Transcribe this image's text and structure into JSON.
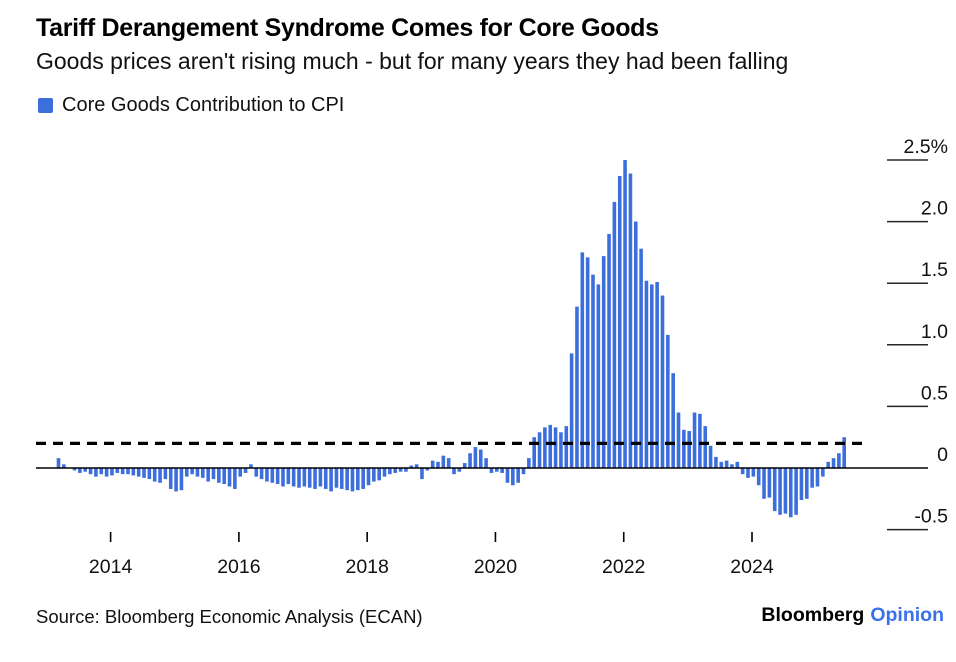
{
  "header": {
    "title": "Tariff Derangement Syndrome Comes for Core Goods",
    "subtitle": "Goods prices aren't rising much - but for many years they had been falling"
  },
  "legend": {
    "label": "Core Goods Contribution to CPI",
    "swatch_color": "#3D6FDC"
  },
  "footer": {
    "source": "Source: Bloomberg Economic Analysis (ECAN)",
    "brand_bloomberg": "Bloomberg",
    "brand_opinion": "Opinion",
    "brand_opinion_color": "#3A70E8"
  },
  "chart_data": {
    "type": "bar",
    "title": "Tariff Derangement Syndrome Comes for Core Goods",
    "subtitle": "Goods prices aren't rising much - but for many years they had been falling",
    "series_name": "Core Goods Contribution to CPI",
    "unit": "%",
    "frequency": "monthly",
    "start_month": "2013-04",
    "end_month": "2025-07",
    "values": [
      0.08,
      0.03,
      0.0,
      -0.02,
      -0.04,
      -0.03,
      -0.05,
      -0.07,
      -0.05,
      -0.07,
      -0.06,
      -0.04,
      -0.05,
      -0.05,
      -0.06,
      -0.07,
      -0.08,
      -0.09,
      -0.11,
      -0.12,
      -0.09,
      -0.17,
      -0.19,
      -0.18,
      -0.07,
      -0.05,
      -0.07,
      -0.08,
      -0.11,
      -0.09,
      -0.12,
      -0.13,
      -0.15,
      -0.17,
      -0.07,
      -0.04,
      0.03,
      -0.07,
      -0.09,
      -0.11,
      -0.12,
      -0.13,
      -0.15,
      -0.13,
      -0.15,
      -0.16,
      -0.15,
      -0.16,
      -0.17,
      -0.15,
      -0.17,
      -0.19,
      -0.16,
      -0.17,
      -0.18,
      -0.19,
      -0.18,
      -0.17,
      -0.14,
      -0.11,
      -0.1,
      -0.07,
      -0.05,
      -0.04,
      -0.03,
      -0.03,
      0.02,
      0.03,
      -0.09,
      -0.02,
      0.06,
      0.05,
      0.1,
      0.08,
      -0.05,
      -0.03,
      0.04,
      0.12,
      0.17,
      0.15,
      0.08,
      -0.04,
      -0.03,
      -0.04,
      -0.12,
      -0.14,
      -0.12,
      -0.05,
      0.08,
      0.25,
      0.29,
      0.33,
      0.35,
      0.33,
      0.29,
      0.34,
      0.93,
      1.31,
      1.75,
      1.71,
      1.57,
      1.49,
      1.72,
      1.9,
      2.16,
      2.37,
      2.5,
      2.39,
      2.0,
      1.78,
      1.52,
      1.49,
      1.51,
      1.4,
      1.08,
      0.77,
      0.45,
      0.31,
      0.3,
      0.45,
      0.44,
      0.34,
      0.18,
      0.09,
      0.05,
      0.06,
      0.03,
      0.05,
      -0.05,
      -0.08,
      -0.07,
      -0.14,
      -0.25,
      -0.24,
      -0.35,
      -0.38,
      -0.37,
      -0.4,
      -0.38,
      -0.26,
      -0.25,
      -0.16,
      -0.15,
      -0.07,
      0.05,
      0.08,
      0.12,
      0.25
    ],
    "ylim": [
      -0.75,
      2.6
    ],
    "y_ticks": [
      {
        "label": "2.5%",
        "value": 2.5
      },
      {
        "label": "2.0",
        "value": 2.0
      },
      {
        "label": "1.5",
        "value": 1.5
      },
      {
        "label": "1.0",
        "value": 1.0
      },
      {
        "label": "0.5",
        "value": 0.5
      },
      {
        "label": "0",
        "value": 0
      },
      {
        "label": "-0.5",
        "value": -0.5
      }
    ],
    "x_ticks": [
      {
        "label": "2014",
        "month_index": 9
      },
      {
        "label": "2016",
        "month_index": 33
      },
      {
        "label": "2018",
        "month_index": 57
      },
      {
        "label": "2020",
        "month_index": 81
      },
      {
        "label": "2022",
        "month_index": 105
      },
      {
        "label": "2024",
        "month_index": 129
      }
    ],
    "reference_line": {
      "value": 0.2,
      "style": "dashed",
      "color": "#000000"
    },
    "bar_color": "#3D6FDC",
    "axis_color": "#000000",
    "legend_position": "top-left",
    "grid": false
  }
}
